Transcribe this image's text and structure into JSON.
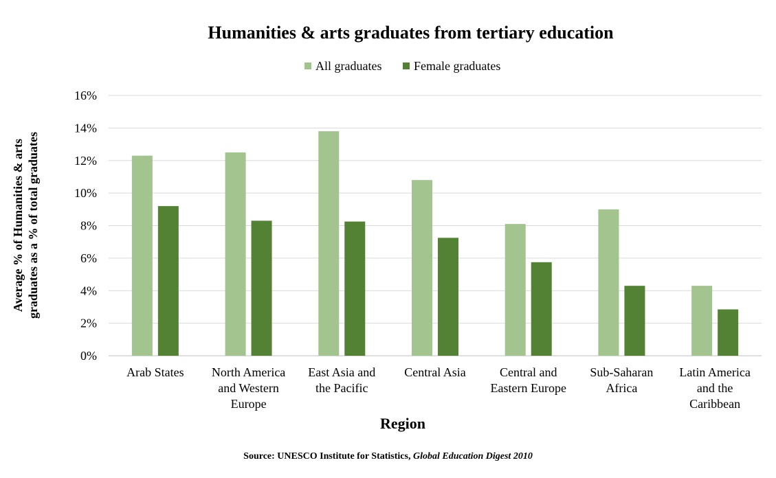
{
  "chart_data": {
    "type": "bar",
    "title": "Humanities & arts graduates from tertiary education",
    "xlabel": "Region",
    "ylabel_lines": [
      "Average % of Humanities & arts",
      "graduates as a % of total graduates"
    ],
    "ylim": [
      0,
      16
    ],
    "yticks": [
      "0%",
      "2%",
      "4%",
      "6%",
      "8%",
      "10%",
      "12%",
      "14%",
      "16%"
    ],
    "grid": true,
    "legend_position": "top-center",
    "categories": [
      [
        "Arab States"
      ],
      [
        "North America",
        "and Western",
        "Europe"
      ],
      [
        "East Asia and",
        "the Pacific"
      ],
      [
        "Central Asia"
      ],
      [
        "Central and",
        "Eastern Europe"
      ],
      [
        "Sub-Saharan",
        "Africa"
      ],
      [
        "Latin America",
        "and the",
        "Caribbean"
      ]
    ],
    "series": [
      {
        "name": "All graduates",
        "color": "#a3c48f",
        "values": [
          12.3,
          12.5,
          13.8,
          10.8,
          8.1,
          9.0,
          4.3
        ]
      },
      {
        "name": "Female graduates",
        "color": "#548235",
        "values": [
          9.2,
          8.3,
          8.25,
          7.25,
          5.75,
          4.3,
          2.85
        ]
      }
    ]
  },
  "source": {
    "prefix": "Source: UNESCO Institute for Statistics,",
    "publication": "Global Education Digest 2010"
  }
}
